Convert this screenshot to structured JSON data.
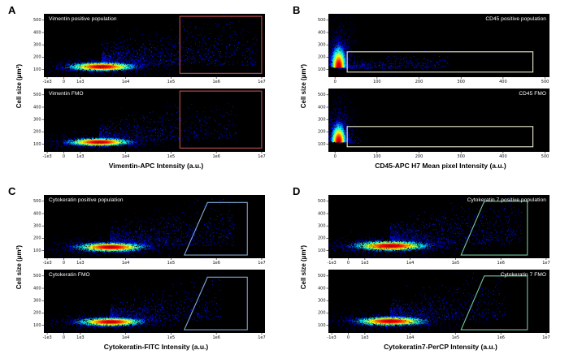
{
  "chart_data": {
    "type": "scatter",
    "figure_kind": "flow-cytometry-density-plots",
    "panels": [
      {
        "letter": "A",
        "ylabel": "Cell size (μm²)",
        "xlabel": "Vimentin-APC Intensity (a.u.)",
        "x_ticks": {
          "labels": [
            "-1e3",
            "0",
            "1e3",
            "1e4",
            "1e5",
            "1e6",
            "1e7"
          ],
          "fracs": [
            0.015,
            0.09,
            0.165,
            0.37,
            0.575,
            0.78,
            0.985
          ]
        },
        "y_ticks": {
          "labels": [
            "500",
            "400",
            "300",
            "200",
            "100"
          ],
          "top": 0.1,
          "bottom": 0.88
        },
        "gate": {
          "shape": "rect",
          "color": "#c0504d",
          "x1": 0.615,
          "y1": 0.04,
          "x2": 0.985,
          "y2": 0.94
        },
        "plots": [
          {
            "title": "Vimentin positive population",
            "title_side": "left",
            "seed": 101,
            "core": {
              "x": 0.26,
              "y": 0.83,
              "sx": 0.072,
              "sy": 0.032,
              "n": 2600
            },
            "tail": {
              "n": 1400,
              "reach": 0.7,
              "ybase": 0.81,
              "yspread": 0.3
            }
          },
          {
            "title": "Vimentin FMO",
            "title_side": "left",
            "seed": 102,
            "core": {
              "x": 0.25,
              "y": 0.84,
              "sx": 0.068,
              "sy": 0.03,
              "n": 2300
            },
            "tail": {
              "n": 850,
              "reach": 0.62,
              "ybase": 0.82,
              "yspread": 0.26
            }
          }
        ]
      },
      {
        "letter": "B",
        "ylabel": "Cell size (μm²)",
        "xlabel": "CD45-APC H7 Mean pixel Intensity (a.u.)",
        "x_ticks": {
          "labels": [
            "0",
            "100",
            "200",
            "300",
            "400",
            "500"
          ],
          "fracs": [
            0.03,
            0.22,
            0.41,
            0.6,
            0.79,
            0.98
          ]
        },
        "y_ticks": {
          "labels": [
            "500",
            "400",
            "300",
            "200",
            "100"
          ],
          "top": 0.1,
          "bottom": 0.88
        },
        "gate": {
          "shape": "rect",
          "color": "#efedd2",
          "x1": 0.085,
          "y1": 0.6,
          "x2": 0.925,
          "y2": 0.92
        },
        "plots": [
          {
            "title": "CD45 positive population",
            "title_side": "right",
            "seed": 201,
            "core": {
              "x": 0.045,
              "y": 0.84,
              "sx": 0.015,
              "sy": 0.15,
              "up": true,
              "n": 2600
            },
            "tail": {
              "n": 600,
              "reach": 0.5,
              "ybase": 0.86,
              "yspread": 0.1
            }
          },
          {
            "title": "CD45 FMO",
            "title_side": "right",
            "seed": 202,
            "core": {
              "x": 0.045,
              "y": 0.84,
              "sx": 0.015,
              "sy": 0.13,
              "up": true,
              "n": 2400
            },
            "tail": {
              "n": 80,
              "reach": 0.1,
              "ybase": 0.86,
              "yspread": 0.06
            }
          }
        ]
      },
      {
        "letter": "C",
        "ylabel": "Cell size (μm²)",
        "xlabel": "Cytokeratin-FITC Intensity (a.u.)",
        "x_ticks": {
          "labels": [
            "-1e3",
            "0",
            "1e3",
            "1e4",
            "1e5",
            "1e6",
            "1e7"
          ],
          "fracs": [
            0.015,
            0.09,
            0.165,
            0.37,
            0.575,
            0.78,
            0.985
          ]
        },
        "y_ticks": {
          "labels": [
            "500",
            "400",
            "300",
            "200",
            "100"
          ],
          "top": 0.1,
          "bottom": 0.88
        },
        "gate": {
          "shape": "poly",
          "color": "#7fa8d0",
          "points": [
            [
              0.635,
              0.95
            ],
            [
              0.74,
              0.12
            ],
            [
              0.92,
              0.12
            ],
            [
              0.92,
              0.95
            ]
          ]
        },
        "plots": [
          {
            "title": "Cytokeratin positive population",
            "title_side": "left",
            "seed": 301,
            "core": {
              "x": 0.3,
              "y": 0.82,
              "sx": 0.075,
              "sy": 0.034,
              "n": 2600
            },
            "tail": {
              "n": 1150,
              "reach": 0.56,
              "ybase": 0.8,
              "yspread": 0.28
            }
          },
          {
            "title": "Cytokeratin FMO",
            "title_side": "left",
            "seed": 302,
            "core": {
              "x": 0.3,
              "y": 0.82,
              "sx": 0.07,
              "sy": 0.032,
              "n": 2400
            },
            "tail": {
              "n": 900,
              "reach": 0.5,
              "ybase": 0.8,
              "yspread": 0.26
            }
          }
        ]
      },
      {
        "letter": "D",
        "ylabel": "Cell size (μm²)",
        "xlabel": "Cytokeratin7-PerCP Intensity (a.u.)",
        "x_ticks": {
          "labels": [
            "-1e3",
            "0",
            "1e3",
            "1e4",
            "1e5",
            "1e6",
            "1e7"
          ],
          "fracs": [
            0.015,
            0.09,
            0.165,
            0.37,
            0.575,
            0.78,
            0.985
          ]
        },
        "y_ticks": {
          "labels": [
            "500",
            "400",
            "300",
            "200",
            "100"
          ],
          "top": 0.1,
          "bottom": 0.88
        },
        "gate": {
          "shape": "poly",
          "color": "#74c6a0",
          "points": [
            [
              0.6,
              0.95
            ],
            [
              0.705,
              0.1
            ],
            [
              0.9,
              0.1
            ],
            [
              0.9,
              0.95
            ]
          ]
        },
        "plots": [
          {
            "title": "Cytokeratin 7 positive population",
            "title_side": "right",
            "seed": 401,
            "core": {
              "x": 0.28,
              "y": 0.8,
              "sx": 0.08,
              "sy": 0.038,
              "n": 2600
            },
            "tail": {
              "n": 1250,
              "reach": 0.6,
              "ybase": 0.78,
              "yspread": 0.3
            }
          },
          {
            "title": "Cytokeratin 7 FMO",
            "title_side": "right",
            "seed": 402,
            "core": {
              "x": 0.28,
              "y": 0.81,
              "sx": 0.075,
              "sy": 0.034,
              "n": 2400
            },
            "tail": {
              "n": 900,
              "reach": 0.52,
              "ybase": 0.79,
              "yspread": 0.27
            }
          }
        ]
      }
    ]
  }
}
